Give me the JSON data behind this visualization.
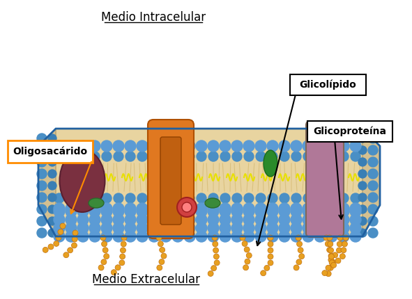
{
  "title_top": "Medio Extracelular",
  "title_bottom": "Medio Intracelular",
  "label_glycolipid": "Glicolípido",
  "label_glycoprotein": "Glicoproteína",
  "label_oligosaccharide": "Oligosacárido",
  "bg_color": "#ffffff",
  "membrane_color": "#6aaee8",
  "phospholipid_head_color": "#5b9bd5",
  "tail_color": "#d4a96a",
  "protein_orange_color": "#e07820",
  "protein_purple_color": "#9b5c8f",
  "protein_darkred_color": "#7a3040",
  "protein_green_color": "#3a8a3a",
  "sugar_color": "#e8a020",
  "label_box_color": "#ff8c00",
  "annotation_box_color": "#000000",
  "fig_width": 5.91,
  "fig_height": 4.3,
  "dpi": 100
}
